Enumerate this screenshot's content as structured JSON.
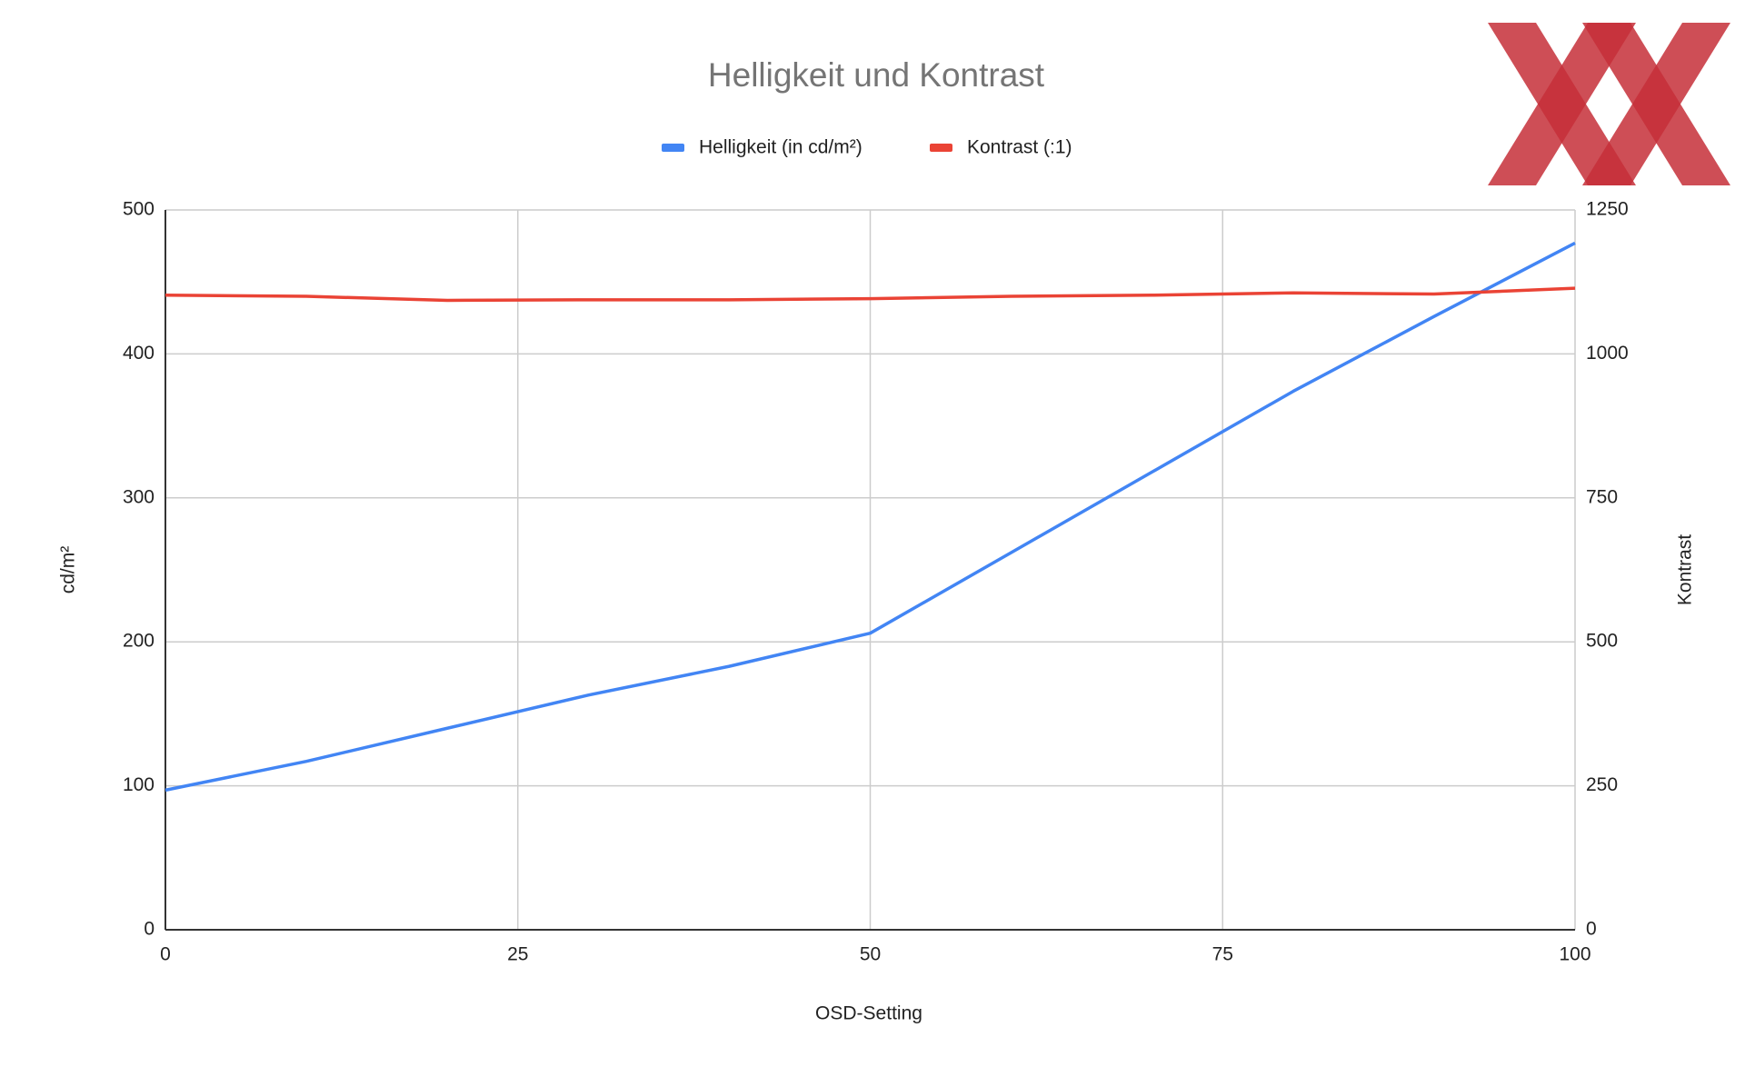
{
  "chart_data": {
    "type": "line",
    "title": "Helligkeit und Kontrast",
    "x": [
      0,
      10,
      20,
      30,
      40,
      50,
      60,
      70,
      80,
      90,
      100
    ],
    "series": [
      {
        "name": "Helligkeit (in cd/m²)",
        "color": "#4285f4",
        "values": [
          97,
          117,
          140,
          163,
          183,
          206,
          262,
          318,
          374,
          426,
          477
        ]
      },
      {
        "name": "Kontrast (:1)",
        "color": "#ea4335",
        "axis": "y2",
        "values": [
          1102,
          1100,
          1093,
          1094,
          1094,
          1096,
          1100,
          1102,
          1106,
          1104,
          1114
        ]
      }
    ],
    "xlabel": "OSD-Setting",
    "ylabel": "cd/m²",
    "y2label": "Kontrast",
    "xlim": [
      0,
      100
    ],
    "xticks": [
      0,
      25,
      50,
      75,
      100
    ],
    "ylim": [
      0,
      500
    ],
    "yticks": [
      0,
      100,
      200,
      300,
      400,
      500
    ],
    "y2lim": [
      0,
      1250
    ],
    "y2ticks": [
      0,
      250,
      500,
      750,
      1000,
      1250
    ],
    "grid": true
  }
}
